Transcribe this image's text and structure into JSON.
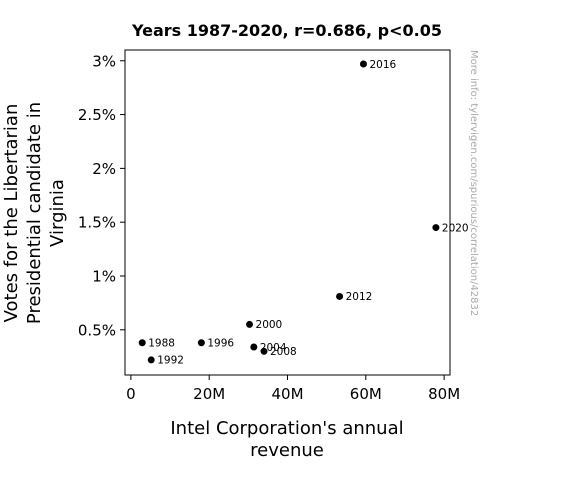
{
  "chart_data": {
    "type": "scatter",
    "title": "Years 1987-2020, r=0.686, p<0.05",
    "xlabel": [
      "Intel Corporation's annual",
      "revenue"
    ],
    "ylabel": [
      "Votes for the Libertarian",
      "Presidential candidate in",
      "Virginia"
    ],
    "xlim": [
      -1.5,
      81.5
    ],
    "ylim": [
      0.08,
      3.1
    ],
    "x_ticks": [
      {
        "value": 0,
        "label": "0"
      },
      {
        "value": 20,
        "label": "20M"
      },
      {
        "value": 40,
        "label": "40M"
      },
      {
        "value": 60,
        "label": "60M"
      },
      {
        "value": 80,
        "label": "80M"
      }
    ],
    "y_ticks": [
      {
        "value": 0.5,
        "label": "0.5%"
      },
      {
        "value": 1.0,
        "label": "1%"
      },
      {
        "value": 1.5,
        "label": "1.5%"
      },
      {
        "value": 2.0,
        "label": "2%"
      },
      {
        "value": 2.5,
        "label": "2.5%"
      },
      {
        "value": 3.0,
        "label": "3%"
      }
    ],
    "points": [
      {
        "label": "1988",
        "x": 2.9,
        "y": 0.38
      },
      {
        "label": "1992",
        "x": 5.2,
        "y": 0.22
      },
      {
        "label": "1996",
        "x": 18.0,
        "y": 0.38
      },
      {
        "label": "2000",
        "x": 30.3,
        "y": 0.55
      },
      {
        "label": "2004",
        "x": 31.4,
        "y": 0.34
      },
      {
        "label": "2008",
        "x": 34.0,
        "y": 0.3
      },
      {
        "label": "2012",
        "x": 53.3,
        "y": 0.81
      },
      {
        "label": "2016",
        "x": 59.4,
        "y": 2.97
      },
      {
        "label": "2020",
        "x": 77.9,
        "y": 1.45
      }
    ],
    "grid": false,
    "marker_color": "#000000"
  },
  "watermark": "More info: tylervigen.com/spurious/correlation/42832"
}
